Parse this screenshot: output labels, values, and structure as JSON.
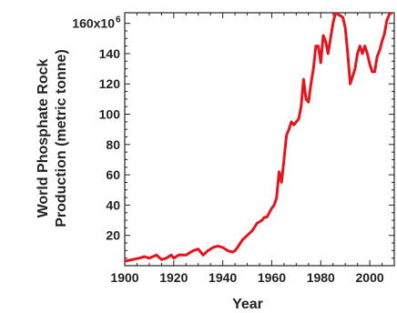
{
  "chart_data": {
    "type": "line",
    "title": "",
    "xlabel": "Year",
    "ylabel_lines": [
      "World Phosphate Rock",
      "Production (metric tonne)"
    ],
    "xlim": [
      1900,
      2010
    ],
    "ylim": [
      0,
      167
    ],
    "x_ticks": [
      1900,
      1920,
      1940,
      1960,
      1980,
      2000
    ],
    "x_tick_labels": [
      "1900",
      "1920",
      "1940",
      "1960",
      "1980",
      "2000"
    ],
    "y_ticks": [
      20,
      40,
      60,
      80,
      100,
      120,
      140,
      160
    ],
    "y_tick_labels": [
      "20",
      "40",
      "60",
      "80",
      "100",
      "120",
      "140",
      "160x10"
    ],
    "y_top_exponent": "6",
    "line_color": "#e8141c",
    "grid": false,
    "series": [
      {
        "x": [
          1900,
          1903,
          1906,
          1908,
          1910,
          1913,
          1915,
          1917,
          1919,
          1920,
          1922,
          1925,
          1928,
          1930,
          1932,
          1934,
          1936,
          1938,
          1940,
          1942,
          1944,
          1945,
          1946,
          1948,
          1950,
          1952,
          1954,
          1956,
          1957,
          1958,
          1960,
          1961,
          1962,
          1963,
          1964,
          1965,
          1966,
          1967,
          1968,
          1969,
          1970,
          1971,
          1972,
          1973,
          1974,
          1975,
          1976,
          1977,
          1978,
          1979,
          1980,
          1981,
          1982,
          1983,
          1984,
          1985,
          1986,
          1987,
          1988,
          1989,
          1990,
          1991,
          1992,
          1993,
          1994,
          1995,
          1996,
          1997,
          1998,
          1999,
          2000,
          2001,
          2002,
          2003,
          2004,
          2005,
          2006,
          2007,
          2008,
          2009
        ],
        "y": [
          3,
          4,
          5,
          6,
          5,
          7,
          4,
          5,
          7,
          5,
          7,
          7,
          10,
          11,
          7,
          10,
          12,
          13,
          12,
          10,
          9,
          10,
          12,
          17,
          20,
          23,
          28,
          30,
          32,
          32,
          38,
          40,
          45,
          62,
          55,
          70,
          86,
          90,
          95,
          93,
          95,
          97,
          105,
          123,
          110,
          108,
          120,
          130,
          145,
          145,
          134,
          152,
          148,
          140,
          150,
          160,
          167,
          166,
          165,
          164,
          157,
          140,
          120,
          125,
          130,
          140,
          145,
          140,
          145,
          140,
          133,
          128,
          128,
          138,
          142,
          148,
          153,
          162,
          166,
          167
        ]
      }
    ]
  }
}
